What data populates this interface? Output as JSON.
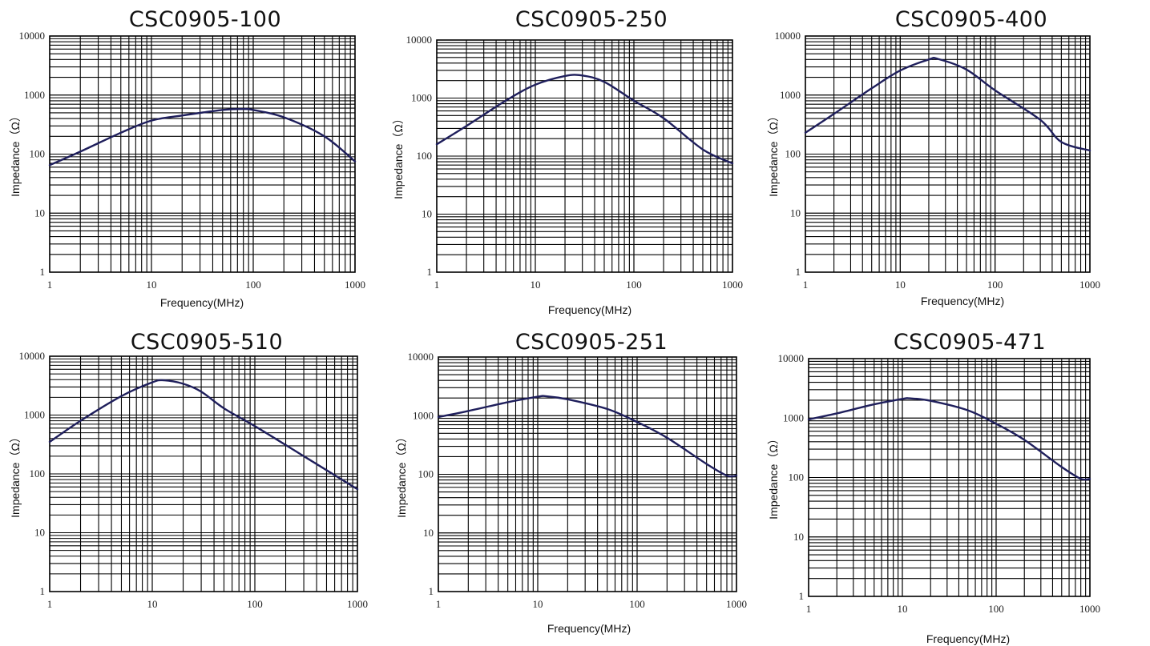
{
  "style": {
    "curve_color": "#1f1f5c",
    "grid_color": "#000000",
    "background": "#ffffff"
  },
  "chart_data": [
    {
      "type": "line",
      "title": "CSC0905-100",
      "xlabel": "Frequency(MHz)",
      "ylabel": "Impedance（Ω）",
      "x_scale": "log",
      "y_scale": "log",
      "xlim": [
        1,
        1000
      ],
      "ylim": [
        1,
        10000
      ],
      "xticks": [
        "1",
        "10",
        "100",
        "1000"
      ],
      "yticks": [
        "1",
        "10",
        "100",
        "1000",
        "10000"
      ],
      "grid": true,
      "series": [
        {
          "x": [
            1,
            2,
            5,
            10,
            20,
            50,
            80,
            100,
            200,
            500,
            1000
          ],
          "y": [
            65,
            110,
            230,
            370,
            450,
            560,
            580,
            560,
            420,
            200,
            75
          ]
        }
      ]
    },
    {
      "type": "line",
      "title": "CSC0905-250",
      "xlabel": "Frequency(MHz)",
      "ylabel": "Impedance（Ω）",
      "x_scale": "log",
      "y_scale": "log",
      "xlim": [
        1,
        1000
      ],
      "ylim": [
        1,
        10000
      ],
      "xticks": [
        "1",
        "10",
        "100",
        "1000"
      ],
      "yticks": [
        "1",
        "10",
        "100",
        "1000",
        "10000"
      ],
      "grid": true,
      "series": [
        {
          "x": [
            1,
            2,
            5,
            10,
            20,
            30,
            50,
            100,
            200,
            500,
            1000
          ],
          "y": [
            160,
            330,
            900,
            1700,
            2400,
            2450,
            1900,
            900,
            450,
            130,
            75
          ]
        }
      ]
    },
    {
      "type": "line",
      "title": "CSC0905-400",
      "xlabel": "Frequency(MHz)",
      "ylabel": "Impedance（Ω）",
      "x_scale": "log",
      "y_scale": "log",
      "xlim": [
        1,
        1000
      ],
      "ylim": [
        1,
        10000
      ],
      "xticks": [
        "1",
        "10",
        "100",
        "1000"
      ],
      "yticks": [
        "1",
        "10",
        "100",
        "1000",
        "10000"
      ],
      "grid": true,
      "series": [
        {
          "x": [
            1,
            2,
            5,
            10,
            20,
            25,
            50,
            100,
            300,
            500,
            1000
          ],
          "y": [
            230,
            480,
            1300,
            2600,
            4000,
            4100,
            2700,
            1200,
            380,
            160,
            115
          ]
        }
      ]
    },
    {
      "type": "line",
      "title": "CSC0905-510",
      "xlabel": "",
      "ylabel": "Impedance（Ω）",
      "x_scale": "log",
      "y_scale": "log",
      "xlim": [
        1,
        1000
      ],
      "ylim": [
        1,
        10000
      ],
      "xticks": [
        "1",
        "10",
        "100",
        "1000"
      ],
      "yticks": [
        "1",
        "10",
        "100",
        "1000",
        "10000"
      ],
      "grid": true,
      "series": [
        {
          "x": [
            1,
            2,
            5,
            10,
            13,
            20,
            30,
            50,
            100,
            300,
            1000
          ],
          "y": [
            350,
            800,
            2100,
            3600,
            3900,
            3400,
            2500,
            1300,
            650,
            200,
            55
          ]
        }
      ]
    },
    {
      "type": "line",
      "title": "CSC0905-251",
      "xlabel": "Frequency(MHz)",
      "ylabel": "Impedance（Ω）",
      "x_scale": "log",
      "y_scale": "log",
      "xlim": [
        1,
        1000
      ],
      "ylim": [
        1,
        10000
      ],
      "xticks": [
        "1",
        "10",
        "100",
        "1000"
      ],
      "yticks": [
        "1",
        "10",
        "100",
        "1000",
        "10000"
      ],
      "grid": true,
      "series": [
        {
          "x": [
            1,
            2,
            5,
            10,
            12,
            20,
            50,
            100,
            200,
            500,
            800,
            1000
          ],
          "y": [
            950,
            1200,
            1700,
            2100,
            2150,
            1900,
            1300,
            780,
            420,
            150,
            95,
            95
          ]
        }
      ]
    },
    {
      "type": "line",
      "title": "CSC0905-471",
      "xlabel": "Frequency(MHz)",
      "ylabel": "Impedance（Ω）",
      "x_scale": "log",
      "y_scale": "log",
      "xlim": [
        1,
        1000
      ],
      "ylim": [
        1,
        10000
      ],
      "xticks": [
        "1",
        "10",
        "100",
        "1000"
      ],
      "yticks": [
        "1",
        "10",
        "100",
        "1000",
        "10000"
      ],
      "grid": true,
      "series": [
        {
          "x": [
            1,
            2,
            5,
            10,
            12,
            20,
            50,
            100,
            200,
            500,
            800,
            1000
          ],
          "y": [
            950,
            1200,
            1700,
            2100,
            2150,
            1950,
            1350,
            800,
            430,
            150,
            95,
            95
          ]
        }
      ]
    }
  ]
}
